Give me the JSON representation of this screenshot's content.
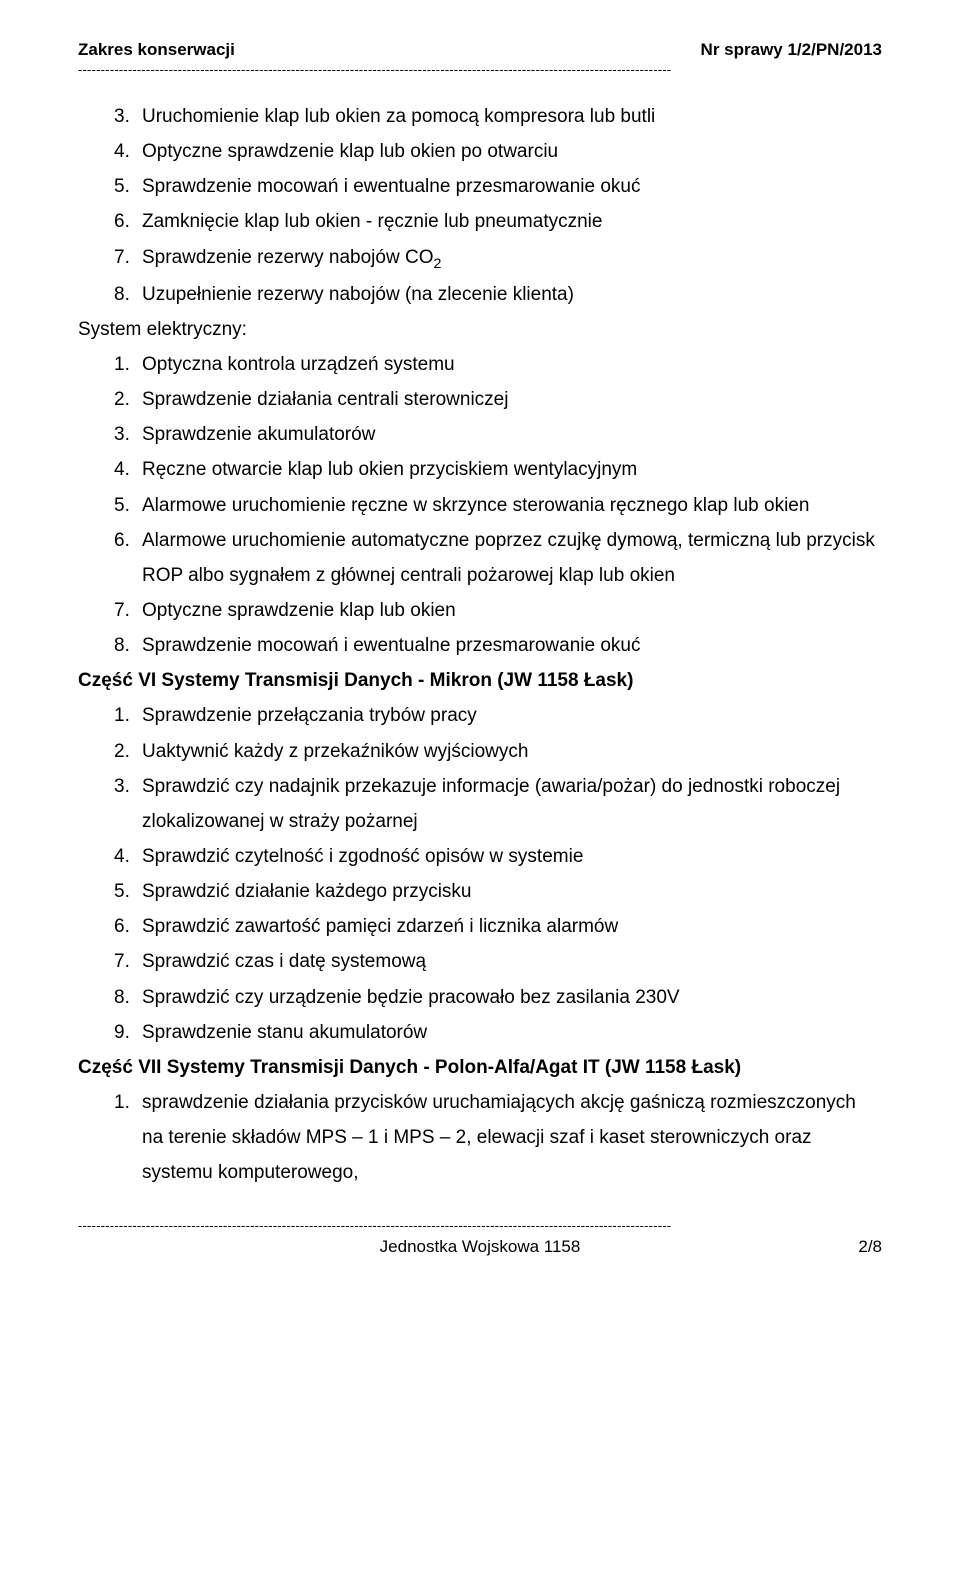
{
  "header": {
    "left": "Zakres konserwacji",
    "right": "Nr sprawy 1/2/PN/2013"
  },
  "dashes": "-----------------------------------------------------------------------------------------------------------------------------------",
  "content": {
    "listA": [
      {
        "n": "3.",
        "t": "Uruchomienie klap lub okien za pomocą kompresora lub butli"
      },
      {
        "n": "4.",
        "t": "Optyczne sprawdzenie klap lub okien po otwarciu"
      },
      {
        "n": "5.",
        "t": "Sprawdzenie mocowań i ewentualne przesmarowanie okuć"
      },
      {
        "n": "6.",
        "t": "Zamknięcie klap lub okien - ręcznie lub pneumatycznie"
      },
      {
        "n": "7.",
        "t": "Sprawdzenie rezerwy nabojów CO"
      },
      {
        "n": "8.",
        "t": "Uzupełnienie rezerwy nabojów (na zlecenie klienta)"
      }
    ],
    "co2_sub": "2",
    "system_label": "System elektryczny:",
    "listB": [
      {
        "n": "1.",
        "t": "Optyczna kontrola urządzeń systemu"
      },
      {
        "n": "2.",
        "t": "Sprawdzenie działania centrali sterowniczej"
      },
      {
        "n": "3.",
        "t": "Sprawdzenie akumulatorów"
      },
      {
        "n": "4.",
        "t": "Ręczne otwarcie klap lub okien przyciskiem wentylacyjnym"
      },
      {
        "n": "5.",
        "t": "Alarmowe uruchomienie ręczne w skrzynce sterowania ręcznego klap lub okien"
      },
      {
        "n": "6.",
        "t": "Alarmowe uruchomienie automatyczne poprzez czujkę dymową, termiczną lub przycisk ROP albo sygnałem z głównej centrali pożarowej klap lub okien"
      },
      {
        "n": "7.",
        "t": "Optyczne sprawdzenie klap lub okien"
      },
      {
        "n": "8.",
        "t": "Sprawdzenie mocowań i ewentualne przesmarowanie okuć"
      }
    ],
    "heading_vi": "Część VI Systemy Transmisji Danych - Mikron (JW 1158 Łask)",
    "listC": [
      {
        "n": "1.",
        "t": "Sprawdzenie przełączania trybów pracy"
      },
      {
        "n": "2.",
        "t": "Uaktywnić każdy z przekaźników wyjściowych"
      },
      {
        "n": "3.",
        "t": "Sprawdzić czy nadajnik przekazuje informacje (awaria/pożar) do jednostki roboczej zlokalizowanej w straży pożarnej"
      },
      {
        "n": "4.",
        "t": "Sprawdzić czytelność i zgodność opisów w systemie"
      },
      {
        "n": "5.",
        "t": "Sprawdzić działanie każdego przycisku"
      },
      {
        "n": "6.",
        "t": "Sprawdzić zawartość pamięci zdarzeń i licznika alarmów"
      },
      {
        "n": "7.",
        "t": "Sprawdzić czas i datę systemową"
      },
      {
        "n": "8.",
        "t": "Sprawdzić czy urządzenie będzie pracowało bez zasilania 230V"
      },
      {
        "n": "9.",
        "t": "Sprawdzenie stanu akumulatorów"
      }
    ],
    "heading_vii": "Część VII Systemy Transmisji Danych - Polon-Alfa/Agat IT (JW 1158 Łask)",
    "listD": [
      {
        "n": "1.",
        "t": "sprawdzenie działania przycisków uruchamiających akcję gaśniczą rozmieszczonych na terenie składów MPS – 1 i MPS – 2, elewacji szaf i kaset sterowniczych oraz systemu komputerowego,"
      }
    ]
  },
  "footer": {
    "center": "Jednostka Wojskowa 1158",
    "page": "2/8"
  }
}
